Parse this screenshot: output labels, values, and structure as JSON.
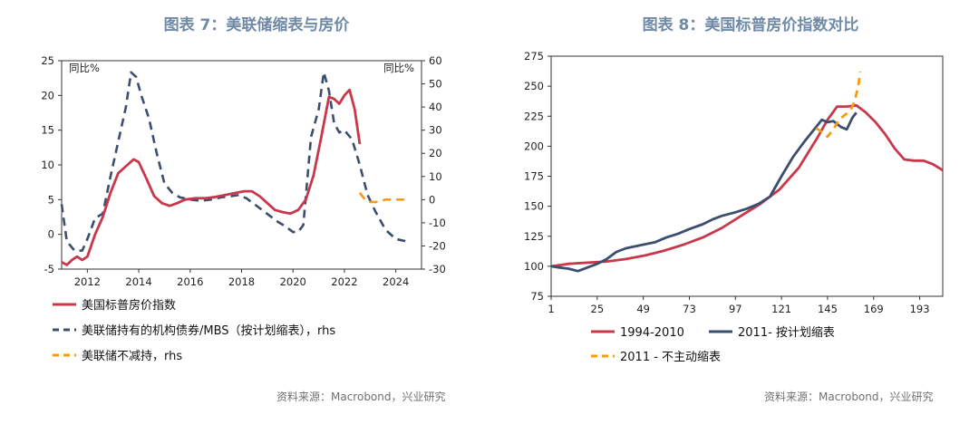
{
  "left": {
    "title": "图表 7：美联储缩表与房价",
    "source": "资料来源：Macrobond，兴业研究",
    "chart_data": {
      "type": "line",
      "ylabel_left": "同比%",
      "ylabel_right": "同比%",
      "ylim_left": [
        -5,
        25
      ],
      "yticks_left": [
        "-5",
        "0",
        "5",
        "10",
        "15",
        "20",
        "25"
      ],
      "ylim_right": [
        -30,
        60
      ],
      "yticks_right": [
        "-30",
        "-20",
        "-10",
        "0",
        "10",
        "20",
        "30",
        "40",
        "50",
        "60"
      ],
      "xlim": [
        2011.0,
        2025.0
      ],
      "xticks": [
        "2012",
        "2014",
        "2016",
        "2018",
        "2020",
        "2022",
        "2024"
      ],
      "legend_placement": "bottom",
      "series": [
        {
          "name": "美国标普房价指数",
          "axis": "left",
          "color": "#c8374a",
          "dash": "solid",
          "x": [
            2011.0,
            2011.2,
            2011.4,
            2011.6,
            2011.8,
            2012.0,
            2012.3,
            2012.6,
            2012.9,
            2013.2,
            2013.5,
            2013.8,
            2014.0,
            2014.3,
            2014.6,
            2014.9,
            2015.2,
            2015.5,
            2015.8,
            2016.2,
            2016.6,
            2017.0,
            2017.4,
            2017.8,
            2018.1,
            2018.4,
            2018.7,
            2019.0,
            2019.3,
            2019.6,
            2019.9,
            2020.2,
            2020.5,
            2020.8,
            2021.1,
            2021.4,
            2021.6,
            2021.8,
            2022.0,
            2022.2,
            2022.4,
            2022.6
          ],
          "values": [
            -4.0,
            -4.4,
            -3.7,
            -3.2,
            -3.7,
            -3.2,
            0.0,
            2.5,
            6.0,
            8.8,
            9.8,
            10.8,
            10.4,
            8.0,
            5.5,
            4.5,
            4.1,
            4.5,
            5.0,
            5.2,
            5.2,
            5.4,
            5.7,
            6.0,
            6.2,
            6.2,
            5.5,
            4.5,
            3.5,
            3.2,
            3.0,
            3.5,
            5.0,
            8.5,
            14.0,
            19.8,
            19.5,
            18.8,
            20.0,
            20.8,
            18.0,
            13.0
          ]
        },
        {
          "name": "美联储持有的机构债券/MBS（按计划缩表），rhs",
          "axis": "right",
          "color": "#3b4e6e",
          "dash": "dashed",
          "x": [
            2011.0,
            2011.2,
            2011.5,
            2011.8,
            2012.0,
            2012.3,
            2012.6,
            2012.9,
            2013.2,
            2013.5,
            2013.7,
            2013.9,
            2014.1,
            2014.4,
            2014.7,
            2015.0,
            2015.3,
            2015.6,
            2016.0,
            2016.4,
            2016.8,
            2017.2,
            2017.6,
            2017.9,
            2018.2,
            2018.5,
            2018.8,
            2019.1,
            2019.4,
            2019.7,
            2020.0,
            2020.2,
            2020.4,
            2020.7,
            2021.0,
            2021.2,
            2021.4,
            2021.6,
            2021.8,
            2022.0,
            2022.3,
            2022.6,
            2022.9,
            2023.2,
            2023.6,
            2024.0,
            2024.4
          ],
          "values": [
            -2.0,
            -18.0,
            -22.0,
            -22.0,
            -17.0,
            -8.0,
            -6.0,
            10.0,
            25.0,
            40.0,
            55.0,
            53.0,
            45.0,
            35.0,
            20.0,
            7.0,
            3.0,
            1.0,
            0.0,
            -0.5,
            0.0,
            1.0,
            1.5,
            2.0,
            0.5,
            -2.0,
            -4.5,
            -7.0,
            -9.5,
            -11.5,
            -14.0,
            -14.0,
            -11.0,
            27.0,
            39.0,
            55.0,
            47.0,
            33.0,
            29.0,
            30.0,
            26.0,
            15.0,
            2.0,
            -5.0,
            -13.0,
            -17.0,
            -18.0
          ]
        },
        {
          "name": "美联储不减持，rhs",
          "axis": "right",
          "color": "#f39c12",
          "dash": "dashed",
          "x": [
            2022.6,
            2022.8,
            2023.0,
            2023.3,
            2023.6,
            2024.0,
            2024.5
          ],
          "values": [
            3.0,
            0.0,
            -1.0,
            -1.0,
            0.0,
            0.0,
            0.0
          ]
        }
      ]
    }
  },
  "right": {
    "title": "图表 8：美国标普房价指数对比",
    "source": "资料来源：Macrobond，兴业研究",
    "chart_data": {
      "type": "line",
      "ylim": [
        75,
        275
      ],
      "yticks": [
        "75",
        "100",
        "125",
        "150",
        "175",
        "200",
        "225",
        "250",
        "275"
      ],
      "xlim": [
        1,
        205
      ],
      "xticks": [
        "1",
        "25",
        "49",
        "73",
        "97",
        "121",
        "145",
        "169",
        "193"
      ],
      "legend_placement": "bottom",
      "series": [
        {
          "name": "1994-2010",
          "color": "#c8374a",
          "dash": "solid",
          "x": [
            1,
            10,
            20,
            30,
            40,
            50,
            60,
            70,
            80,
            90,
            100,
            110,
            120,
            130,
            140,
            145,
            150,
            155,
            160,
            165,
            170,
            175,
            180,
            185,
            190,
            195,
            200,
            205
          ],
          "values": [
            100,
            102,
            103,
            104,
            106,
            109,
            113,
            118,
            124,
            132,
            142,
            152,
            164,
            182,
            208,
            222,
            233,
            233,
            234,
            228,
            220,
            210,
            198,
            189,
            188,
            188,
            185,
            180
          ]
        },
        {
          "name": "2011- 按计划缩表",
          "color": "#3b4e6e",
          "dash": "solid",
          "x": [
            1,
            5,
            10,
            15,
            20,
            25,
            30,
            35,
            40,
            49,
            55,
            61,
            67,
            73,
            80,
            85,
            90,
            97,
            103,
            109,
            115,
            121,
            127,
            133,
            139,
            142,
            145,
            148,
            152,
            155,
            158,
            160
          ],
          "values": [
            100,
            99,
            98,
            96,
            99,
            102,
            106,
            112,
            115,
            118,
            120,
            124,
            127,
            131,
            135,
            139,
            142,
            145,
            148,
            152,
            158,
            175,
            191,
            204,
            216,
            222,
            220,
            221,
            216,
            214,
            224,
            228
          ]
        },
        {
          "name": "2011 - 不主动缩表",
          "color": "#f39c12",
          "dash": "dashed",
          "x": [
            139,
            142,
            145,
            148,
            151,
            154,
            157,
            159,
            161,
            162
          ],
          "values": [
            215,
            212,
            208,
            214,
            222,
            226,
            230,
            237,
            250,
            262
          ]
        }
      ]
    }
  }
}
